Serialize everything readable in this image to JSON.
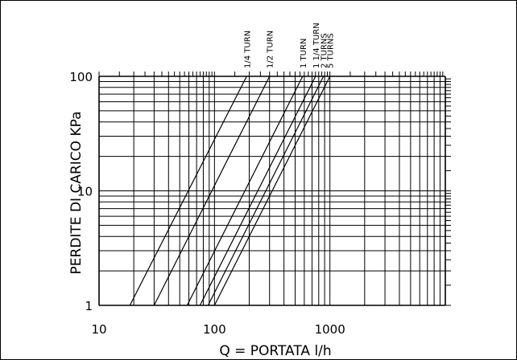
{
  "chart_data": {
    "type": "line",
    "title": "",
    "xlabel": "Q = PORTATA l/h",
    "ylabel": "PERDITE DI CARICO KPa",
    "x_scale": "log",
    "y_scale": "log",
    "xlim": [
      10,
      10000
    ],
    "ylim": [
      1,
      100
    ],
    "x_tick_labels": [
      "10",
      "100",
      "1000"
    ],
    "y_tick_labels": [
      "1",
      "10",
      "100"
    ],
    "grid": true,
    "legend": "none",
    "series": [
      {
        "name": "1/4 TURN",
        "x": [
          18.5,
          190
        ],
        "y": [
          1,
          100
        ]
      },
      {
        "name": "1/2 TURN",
        "x": [
          30,
          300
        ],
        "y": [
          1,
          100
        ]
      },
      {
        "name": "1 TURN",
        "x": [
          58,
          580
        ],
        "y": [
          1,
          100
        ]
      },
      {
        "name": "1 1/4 TURN",
        "x": [
          75,
          750
        ],
        "y": [
          1,
          100
        ]
      },
      {
        "name": "2 TURNS",
        "x": [
          88,
          880
        ],
        "y": [
          1,
          100
        ]
      },
      {
        "name": "5 TURNS",
        "x": [
          100,
          1000
        ],
        "y": [
          1,
          100
        ]
      }
    ],
    "colors": {
      "line": "#000000",
      "grid": "#000000",
      "background": "#ffffff"
    }
  }
}
